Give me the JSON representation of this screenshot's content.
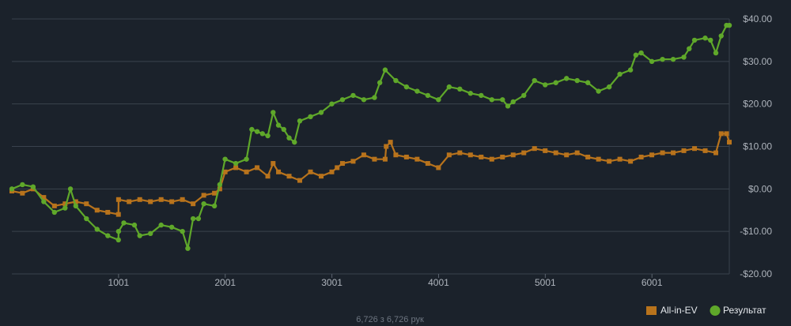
{
  "chart_data": {
    "type": "line",
    "title": "",
    "xlabel": "",
    "ylabel": "",
    "xlim": [
      1,
      6726
    ],
    "ylim": [
      -20,
      40
    ],
    "x_ticks": [
      1001,
      2001,
      3001,
      4001,
      5001,
      6001
    ],
    "x_tick_labels": [
      "1001",
      "2001",
      "3001",
      "4001",
      "5001",
      "6001"
    ],
    "y_ticks": [
      -20,
      -10,
      0,
      10,
      20,
      30,
      40
    ],
    "y_tick_labels": [
      "-$20.00",
      "-$10.00",
      "$0.00",
      "$10.00",
      "$20.00",
      "$30.00",
      "$40.00"
    ],
    "grid": true,
    "legend_position": "bottom-right",
    "series": [
      {
        "name": "All-in-EV",
        "color": "#b8731c",
        "marker": "square",
        "points": [
          [
            1,
            -0.5
          ],
          [
            100,
            -1
          ],
          [
            200,
            0
          ],
          [
            300,
            -2
          ],
          [
            400,
            -4
          ],
          [
            500,
            -3.5
          ],
          [
            600,
            -3
          ],
          [
            700,
            -3.5
          ],
          [
            800,
            -5
          ],
          [
            900,
            -5.5
          ],
          [
            1000,
            -6
          ],
          [
            1001,
            -2.5
          ],
          [
            1100,
            -3
          ],
          [
            1200,
            -2.5
          ],
          [
            1300,
            -3
          ],
          [
            1400,
            -2.5
          ],
          [
            1500,
            -3
          ],
          [
            1600,
            -2.5
          ],
          [
            1700,
            -3.5
          ],
          [
            1800,
            -1.5
          ],
          [
            1900,
            -1
          ],
          [
            1950,
            0
          ],
          [
            2000,
            4
          ],
          [
            2100,
            5
          ],
          [
            2200,
            4
          ],
          [
            2300,
            5
          ],
          [
            2400,
            3
          ],
          [
            2450,
            6
          ],
          [
            2500,
            4
          ],
          [
            2600,
            3
          ],
          [
            2700,
            2
          ],
          [
            2800,
            4
          ],
          [
            2900,
            3
          ],
          [
            3000,
            4
          ],
          [
            3050,
            5
          ],
          [
            3100,
            6
          ],
          [
            3200,
            6.5
          ],
          [
            3300,
            8
          ],
          [
            3400,
            7
          ],
          [
            3500,
            7
          ],
          [
            3510,
            10
          ],
          [
            3550,
            11
          ],
          [
            3600,
            8
          ],
          [
            3700,
            7.5
          ],
          [
            3800,
            7
          ],
          [
            3900,
            6
          ],
          [
            4000,
            5
          ],
          [
            4100,
            8
          ],
          [
            4200,
            8.5
          ],
          [
            4300,
            8
          ],
          [
            4400,
            7.5
          ],
          [
            4500,
            7
          ],
          [
            4600,
            7.5
          ],
          [
            4700,
            8
          ],
          [
            4800,
            8.5
          ],
          [
            4900,
            9.5
          ],
          [
            5000,
            9
          ],
          [
            5100,
            8.5
          ],
          [
            5200,
            8
          ],
          [
            5300,
            8.5
          ],
          [
            5400,
            7.5
          ],
          [
            5500,
            7
          ],
          [
            5600,
            6.5
          ],
          [
            5700,
            7
          ],
          [
            5800,
            6.5
          ],
          [
            5900,
            7.5
          ],
          [
            6000,
            8
          ],
          [
            6100,
            8.5
          ],
          [
            6200,
            8.5
          ],
          [
            6300,
            9
          ],
          [
            6400,
            9.5
          ],
          [
            6500,
            9
          ],
          [
            6600,
            8.5
          ],
          [
            6650,
            13
          ],
          [
            6700,
            13
          ],
          [
            6726,
            11
          ]
        ]
      },
      {
        "name": "Результат",
        "color": "#5fa82a",
        "marker": "circle",
        "points": [
          [
            1,
            0
          ],
          [
            100,
            1
          ],
          [
            200,
            0.5
          ],
          [
            300,
            -3
          ],
          [
            400,
            -5.5
          ],
          [
            500,
            -4.5
          ],
          [
            550,
            0
          ],
          [
            600,
            -4
          ],
          [
            700,
            -7
          ],
          [
            800,
            -9.5
          ],
          [
            900,
            -11
          ],
          [
            1000,
            -12
          ],
          [
            1001,
            -10
          ],
          [
            1050,
            -8
          ],
          [
            1150,
            -8.5
          ],
          [
            1200,
            -11
          ],
          [
            1300,
            -10.5
          ],
          [
            1400,
            -8.5
          ],
          [
            1500,
            -9
          ],
          [
            1600,
            -10
          ],
          [
            1650,
            -14
          ],
          [
            1700,
            -7
          ],
          [
            1750,
            -7
          ],
          [
            1800,
            -3.5
          ],
          [
            1900,
            -4
          ],
          [
            1950,
            1
          ],
          [
            2000,
            7
          ],
          [
            2100,
            6
          ],
          [
            2200,
            7
          ],
          [
            2250,
            14
          ],
          [
            2300,
            13.5
          ],
          [
            2350,
            13
          ],
          [
            2400,
            12.5
          ],
          [
            2450,
            18
          ],
          [
            2500,
            15
          ],
          [
            2550,
            14
          ],
          [
            2600,
            12
          ],
          [
            2650,
            11
          ],
          [
            2700,
            16
          ],
          [
            2800,
            17
          ],
          [
            2900,
            18
          ],
          [
            3000,
            20
          ],
          [
            3100,
            21
          ],
          [
            3200,
            22
          ],
          [
            3300,
            21
          ],
          [
            3400,
            21.5
          ],
          [
            3450,
            25
          ],
          [
            3500,
            28
          ],
          [
            3600,
            25.5
          ],
          [
            3700,
            24
          ],
          [
            3800,
            23
          ],
          [
            3900,
            22
          ],
          [
            4000,
            21
          ],
          [
            4100,
            24
          ],
          [
            4200,
            23.5
          ],
          [
            4300,
            22.5
          ],
          [
            4400,
            22
          ],
          [
            4500,
            21
          ],
          [
            4600,
            21
          ],
          [
            4650,
            19.5
          ],
          [
            4700,
            20.5
          ],
          [
            4800,
            22
          ],
          [
            4900,
            25.5
          ],
          [
            5000,
            24.5
          ],
          [
            5100,
            25
          ],
          [
            5200,
            26
          ],
          [
            5300,
            25.5
          ],
          [
            5400,
            25
          ],
          [
            5500,
            23
          ],
          [
            5600,
            24
          ],
          [
            5700,
            27
          ],
          [
            5800,
            28
          ],
          [
            5850,
            31.5
          ],
          [
            5900,
            32
          ],
          [
            6000,
            30
          ],
          [
            6100,
            30.5
          ],
          [
            6200,
            30.5
          ],
          [
            6300,
            31
          ],
          [
            6350,
            33
          ],
          [
            6400,
            35
          ],
          [
            6500,
            35.5
          ],
          [
            6550,
            35
          ],
          [
            6600,
            32
          ],
          [
            6650,
            36
          ],
          [
            6700,
            38.5
          ],
          [
            6726,
            38.5
          ]
        ]
      }
    ]
  },
  "footer": {
    "text": "6,726 з 6,726 рук"
  }
}
